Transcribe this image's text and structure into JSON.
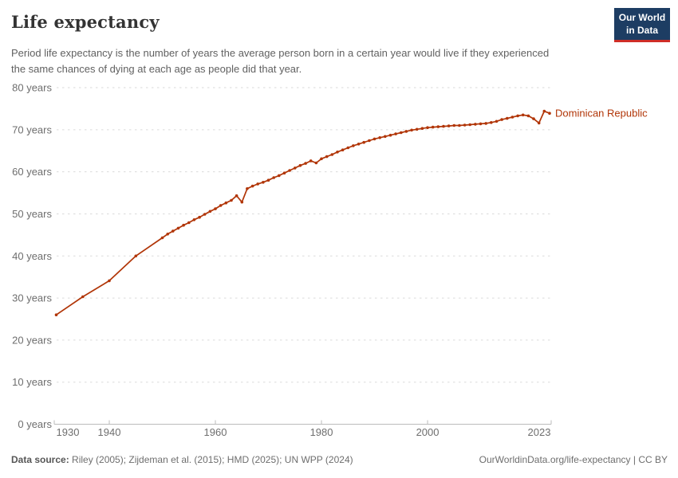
{
  "header": {
    "title": "Life expectancy",
    "subtitle": "Period life expectancy is the number of years the average person born in a certain year would live if they experienced the same chances of dying at each age as people did that year.",
    "logo": {
      "line1": "Our World",
      "line2": "in Data",
      "bg_color": "#1d3d63",
      "accent_color": "#cf2d27"
    }
  },
  "chart_data": {
    "type": "line",
    "title": "Life expectancy",
    "xlabel": "",
    "ylabel": "years",
    "xlim": [
      1930,
      2023
    ],
    "ylim": [
      0,
      80
    ],
    "grid": "horizontal dashed",
    "legend_position": "end-of-line label",
    "x_ticks": [
      {
        "year": 1930,
        "label": "1930"
      },
      {
        "year": 1940,
        "label": "1940"
      },
      {
        "year": 1960,
        "label": "1960"
      },
      {
        "year": 1980,
        "label": "1980"
      },
      {
        "year": 2000,
        "label": "2000"
      },
      {
        "year": 2023,
        "label": "2023"
      }
    ],
    "y_ticks": [
      {
        "value": 0,
        "label": "0 years"
      },
      {
        "value": 10,
        "label": "10 years"
      },
      {
        "value": 20,
        "label": "20 years"
      },
      {
        "value": 30,
        "label": "30 years"
      },
      {
        "value": 40,
        "label": "40 years"
      },
      {
        "value": 50,
        "label": "50 years"
      },
      {
        "value": 60,
        "label": "60 years"
      },
      {
        "value": 70,
        "label": "70 years"
      },
      {
        "value": 80,
        "label": "80 years"
      }
    ],
    "series": [
      {
        "name": "Dominican Republic",
        "color": "#b13507",
        "points": [
          [
            1930,
            26.0
          ],
          [
            1935,
            30.3
          ],
          [
            1940,
            34.1
          ],
          [
            1945,
            40.0
          ],
          [
            1950,
            44.3
          ],
          [
            1951,
            45.2
          ],
          [
            1952,
            45.9
          ],
          [
            1953,
            46.6
          ],
          [
            1954,
            47.3
          ],
          [
            1955,
            47.9
          ],
          [
            1956,
            48.6
          ],
          [
            1957,
            49.2
          ],
          [
            1958,
            49.9
          ],
          [
            1959,
            50.6
          ],
          [
            1960,
            51.2
          ],
          [
            1961,
            52.0
          ],
          [
            1962,
            52.6
          ],
          [
            1963,
            53.2
          ],
          [
            1964,
            54.3
          ],
          [
            1965,
            52.8
          ],
          [
            1966,
            56.0
          ],
          [
            1967,
            56.6
          ],
          [
            1968,
            57.1
          ],
          [
            1969,
            57.5
          ],
          [
            1970,
            58.0
          ],
          [
            1971,
            58.6
          ],
          [
            1972,
            59.1
          ],
          [
            1973,
            59.7
          ],
          [
            1974,
            60.3
          ],
          [
            1975,
            60.9
          ],
          [
            1976,
            61.5
          ],
          [
            1977,
            62.0
          ],
          [
            1978,
            62.6
          ],
          [
            1979,
            62.1
          ],
          [
            1980,
            63.1
          ],
          [
            1981,
            63.6
          ],
          [
            1982,
            64.1
          ],
          [
            1983,
            64.7
          ],
          [
            1984,
            65.2
          ],
          [
            1985,
            65.7
          ],
          [
            1986,
            66.2
          ],
          [
            1987,
            66.6
          ],
          [
            1988,
            67.0
          ],
          [
            1989,
            67.4
          ],
          [
            1990,
            67.8
          ],
          [
            1991,
            68.1
          ],
          [
            1992,
            68.4
          ],
          [
            1993,
            68.7
          ],
          [
            1994,
            69.0
          ],
          [
            1995,
            69.3
          ],
          [
            1996,
            69.6
          ],
          [
            1997,
            69.9
          ],
          [
            1998,
            70.1
          ],
          [
            1999,
            70.3
          ],
          [
            2000,
            70.5
          ],
          [
            2001,
            70.6
          ],
          [
            2002,
            70.7
          ],
          [
            2003,
            70.8
          ],
          [
            2004,
            70.9
          ],
          [
            2005,
            71.0
          ],
          [
            2006,
            71.0
          ],
          [
            2007,
            71.1
          ],
          [
            2008,
            71.2
          ],
          [
            2009,
            71.3
          ],
          [
            2010,
            71.4
          ],
          [
            2011,
            71.5
          ],
          [
            2012,
            71.7
          ],
          [
            2013,
            72.0
          ],
          [
            2014,
            72.4
          ],
          [
            2015,
            72.7
          ],
          [
            2016,
            73.0
          ],
          [
            2017,
            73.3
          ],
          [
            2018,
            73.5
          ],
          [
            2019,
            73.3
          ],
          [
            2020,
            72.6
          ],
          [
            2021,
            71.6
          ],
          [
            2022,
            74.4
          ],
          [
            2023,
            73.9
          ]
        ]
      }
    ]
  },
  "footer": {
    "source_label": "Data source:",
    "source_text": " Riley (2005); Zijdeman et al. (2015); HMD (2025); UN WPP (2024)",
    "credit": "OurWorldinData.org/life-expectancy | CC BY"
  }
}
